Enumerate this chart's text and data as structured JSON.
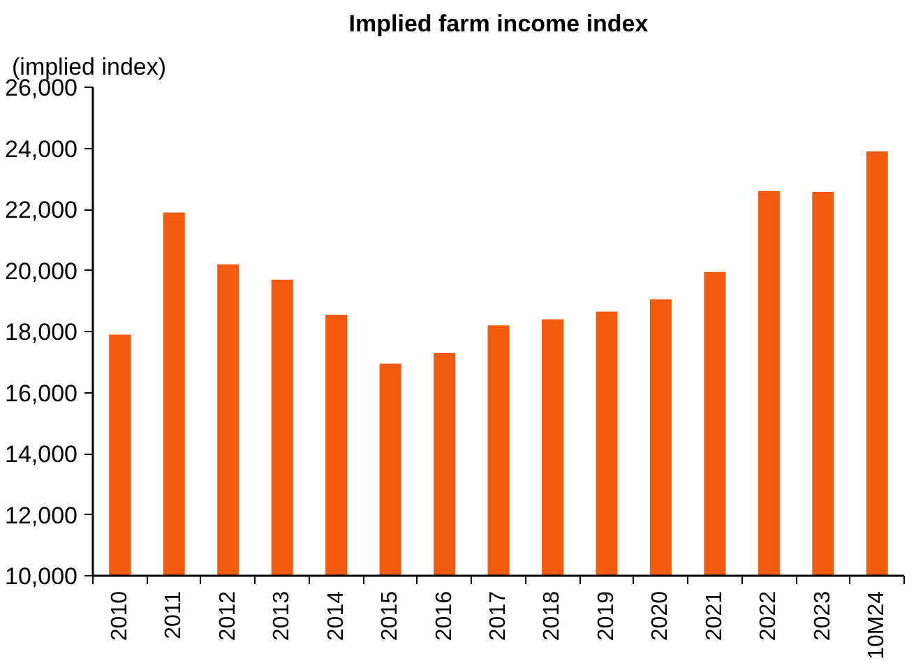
{
  "chart_data": {
    "type": "bar",
    "title": "Implied farm income index",
    "ylabel": "(implied index)",
    "categories": [
      "2010",
      "2011",
      "2012",
      "2013",
      "2014",
      "2015",
      "2016",
      "2017",
      "2018",
      "2019",
      "2020",
      "2021",
      "2022",
      "2023",
      "10M24"
    ],
    "values": [
      17900,
      21900,
      20200,
      19700,
      18550,
      16950,
      17300,
      18200,
      18400,
      18650,
      19050,
      19950,
      22600,
      22570,
      23900
    ],
    "color": "#f55b0f",
    "ylim": [
      10000,
      26000
    ],
    "yticks": [
      {
        "value": 10000,
        "label": "10,000"
      },
      {
        "value": 12000,
        "label": "12,000"
      },
      {
        "value": 14000,
        "label": "14,000"
      },
      {
        "value": 16000,
        "label": "16,000"
      },
      {
        "value": 18000,
        "label": "18,000"
      },
      {
        "value": 20000,
        "label": "20,000"
      },
      {
        "value": 22000,
        "label": "22,000"
      },
      {
        "value": 24000,
        "label": "24,000"
      },
      {
        "value": 26000,
        "label": "26,000"
      }
    ],
    "grid": false
  }
}
